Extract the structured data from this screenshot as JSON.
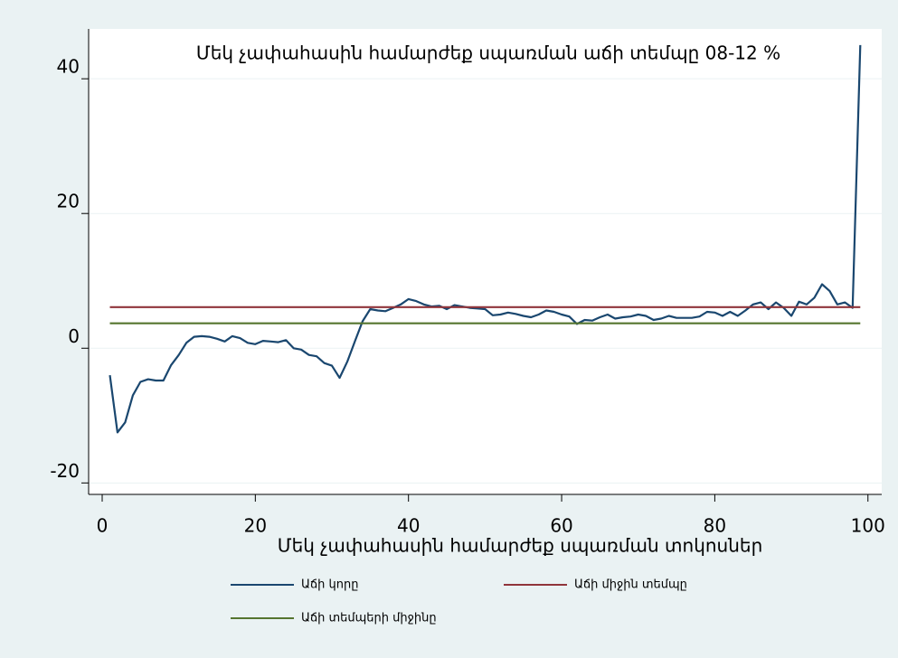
{
  "chart_data": {
    "type": "line",
    "title": "Մեկ չափահասին համարժեք սպառման աճի տեմպը 08-12 %",
    "x_label": "Մեկ չափահասին համարժեք սպառման տոկոսներ",
    "xlim": [
      -1.77,
      101.8
    ],
    "xticks": [
      0,
      20,
      40,
      60,
      80,
      100
    ],
    "ylim": [
      -21.7,
      47.4
    ],
    "yticks": [
      -20,
      0,
      20,
      40
    ],
    "grid": true,
    "legend": "bottom",
    "series": [
      {
        "name": "Աճի կորը",
        "color": "#1a476f",
        "x": [
          1,
          2,
          3,
          4,
          5,
          6,
          7,
          8,
          9,
          10,
          11,
          12,
          13,
          14,
          15,
          16,
          17,
          18,
          19,
          20,
          21,
          22,
          23,
          24,
          25,
          26,
          27,
          28,
          29,
          30,
          31,
          32,
          33,
          34,
          35,
          36,
          37,
          38,
          39,
          40,
          41,
          42,
          43,
          44,
          45,
          46,
          47,
          48,
          49,
          50,
          51,
          52,
          53,
          54,
          55,
          56,
          57,
          58,
          59,
          60,
          61,
          62,
          63,
          64,
          65,
          66,
          67,
          68,
          69,
          70,
          71,
          72,
          73,
          74,
          75,
          76,
          77,
          78,
          79,
          80,
          81,
          82,
          83,
          84,
          85,
          86,
          87,
          88,
          89,
          90,
          91,
          92,
          93,
          94,
          95,
          96,
          97,
          98,
          99
        ],
        "values": [
          -4,
          -12.5,
          -11,
          -7,
          -5,
          -4.6,
          -4.8,
          -4.8,
          -2.5,
          -1,
          0.8,
          1.7,
          1.8,
          1.7,
          1.4,
          1.0,
          1.8,
          1.5,
          0.8,
          0.6,
          1.1,
          1.0,
          0.9,
          1.2,
          0.0,
          -0.2,
          -1.0,
          -1.2,
          -2.2,
          -2.6,
          -4.4,
          -2,
          1.0,
          4.0,
          5.8,
          5.6,
          5.5,
          6.0,
          6.5,
          7.3,
          7.0,
          6.5,
          6.2,
          6.3,
          5.8,
          6.4,
          6.2,
          6.0,
          5.9,
          5.8,
          4.9,
          5.0,
          5.3,
          5.1,
          4.8,
          4.6,
          5.0,
          5.6,
          5.4,
          5.0,
          4.7,
          3.6,
          4.2,
          4.1,
          4.6,
          5.0,
          4.4,
          4.6,
          4.7,
          5.0,
          4.8,
          4.2,
          4.4,
          4.8,
          4.5,
          4.5,
          4.5,
          4.7,
          5.4,
          5.3,
          4.8,
          5.4,
          4.8,
          5.6,
          6.5,
          6.8,
          5.8,
          6.8,
          6.0,
          4.8,
          6.9,
          6.5,
          7.5,
          9.5,
          8.5,
          6.5,
          6.8,
          6.0,
          45
        ]
      },
      {
        "name": "Աճի միջին տեմպը",
        "color": "#90353b",
        "x": [
          1,
          99
        ],
        "values": [
          6.1,
          6.1
        ]
      },
      {
        "name": "Աճի տեմպերի միջինը",
        "color": "#55752f",
        "x": [
          1,
          99
        ],
        "values": [
          3.7,
          3.7
        ]
      }
    ]
  }
}
